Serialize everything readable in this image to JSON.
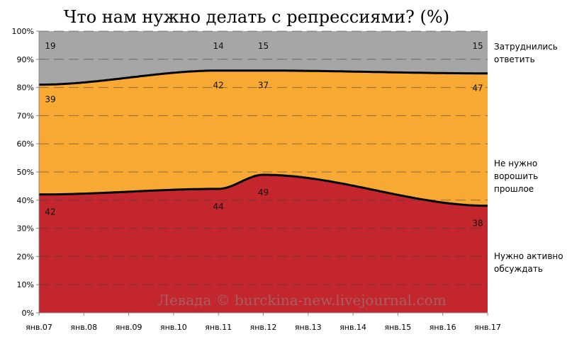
{
  "chart_data": {
    "type": "area",
    "title": "Что нам нужно делать с репрессиями? (%)",
    "watermark": "Левада © burckina-new.livejournal.com",
    "x": [
      "янв.07",
      "янв.08",
      "янв.09",
      "янв.10",
      "янв.11",
      "янв.12",
      "янв.13",
      "янв.14",
      "янв.15",
      "янв.16",
      "янв.17"
    ],
    "y_ticks": [
      "0%",
      "10%",
      "20%",
      "30%",
      "40%",
      "50%",
      "60%",
      "70%",
      "80%",
      "90%",
      "100%"
    ],
    "ylim": [
      0,
      100
    ],
    "grid": "dashed horizontal",
    "series": [
      {
        "name": "Нужно активно обсуждать",
        "color": "#c4262e",
        "points": [
          [
            "янв.07",
            42
          ],
          [
            "янв.11",
            44
          ],
          [
            "янв.12",
            49
          ],
          [
            "янв.17",
            38
          ]
        ],
        "value_labels": [
          "42",
          "44",
          "49",
          "38"
        ]
      },
      {
        "name": "Не нужно ворошить прошлое",
        "color": "#f8a934",
        "points": [
          [
            "янв.07",
            39
          ],
          [
            "янв.11",
            42
          ],
          [
            "янв.12",
            37
          ],
          [
            "янв.17",
            47
          ]
        ],
        "value_labels": [
          "39",
          "42",
          "37",
          "47"
        ]
      },
      {
        "name": "Затруднились ответить",
        "color": "#a6a6a6",
        "points": [
          [
            "янв.07",
            19
          ],
          [
            "янв.11",
            14
          ],
          [
            "янв.12",
            15
          ],
          [
            "янв.17",
            15
          ]
        ],
        "value_labels": [
          "19",
          "14",
          "15",
          "15"
        ]
      }
    ],
    "legend": [
      {
        "lines": [
          "Затруднились",
          "ответить"
        ]
      },
      {
        "lines": [
          "Не нужно",
          "ворошить",
          "прошлое"
        ]
      },
      {
        "lines": [
          "Нужно активно",
          "обсуждать"
        ]
      }
    ]
  }
}
